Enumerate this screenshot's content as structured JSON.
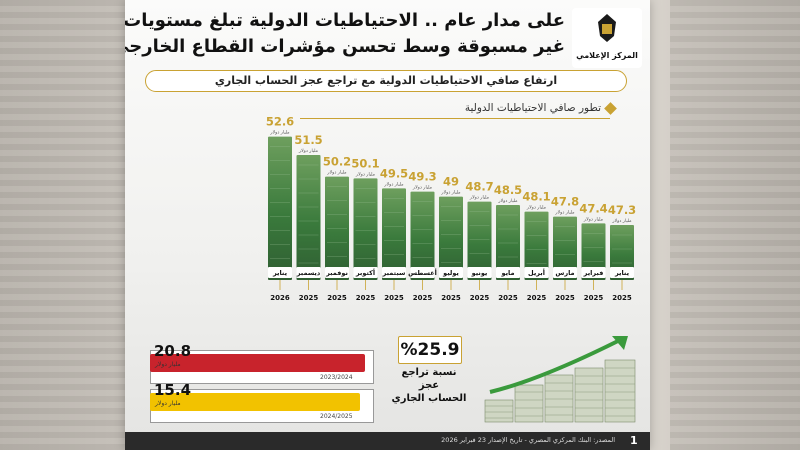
{
  "header": {
    "title_line1": "على مدار عام .. الاحتياطيات الدولية تبلغ مستويات",
    "title_line2": "غير مسبوقة وسط تحسن مؤشرات القطاع الخارجي",
    "subtitle": "ارتفاع صافي الاحتياطيات الدولية مع تراجع عجز الحساب الجاري",
    "logo_text": "المركز الإعلامي"
  },
  "chart_data": {
    "type": "bar",
    "title": "تطور صافي الاحتياطيات الدولية",
    "unit_label": "مليار دولار",
    "categories": [
      {
        "month": "يناير",
        "year": "2025"
      },
      {
        "month": "فبراير",
        "year": "2025"
      },
      {
        "month": "مارس",
        "year": "2025"
      },
      {
        "month": "أبريل",
        "year": "2025"
      },
      {
        "month": "مايو",
        "year": "2025"
      },
      {
        "month": "يونيو",
        "year": "2025"
      },
      {
        "month": "يوليو",
        "year": "2025"
      },
      {
        "month": "أغسطس",
        "year": "2025"
      },
      {
        "month": "سبتمبر",
        "year": "2025"
      },
      {
        "month": "أكتوبر",
        "year": "2025"
      },
      {
        "month": "نوفمبر",
        "year": "2025"
      },
      {
        "month": "ديسمبر",
        "year": "2025"
      },
      {
        "month": "يناير",
        "year": "2026"
      }
    ],
    "values": [
      47.3,
      47.4,
      47.8,
      48.1,
      48.5,
      48.7,
      49,
      49.3,
      49.5,
      50.1,
      50.2,
      51.5,
      52.6
    ],
    "value_labels": [
      "47.3",
      "47.4",
      "47.8",
      "48.1",
      "48.5",
      "48.7",
      "49",
      "49.3",
      "49.5",
      "50.1",
      "50.2",
      "51.5",
      "52.6"
    ],
    "direction": "right-to-left",
    "grid": false,
    "legend": "none",
    "colors": {
      "bar": "#3a7a3c",
      "value": "#c9a233"
    }
  },
  "comparison": {
    "unit": "مليار دولار",
    "items": [
      {
        "value": "20.8",
        "period": "2023/2024",
        "color": "#c8232c"
      },
      {
        "value": "15.4",
        "period": "2024/2025",
        "color": "#f2c200"
      }
    ],
    "decline_pct": "25.9",
    "decline_symbol": "%",
    "decline_label_line1": "نسبة تراجع عجز",
    "decline_label_line2": "الحساب الجاري"
  },
  "footer": {
    "source": "المصدر: البنك المركزي المصري - تاريخ الإصدار 23 فبراير 2026",
    "page_number": "1"
  }
}
